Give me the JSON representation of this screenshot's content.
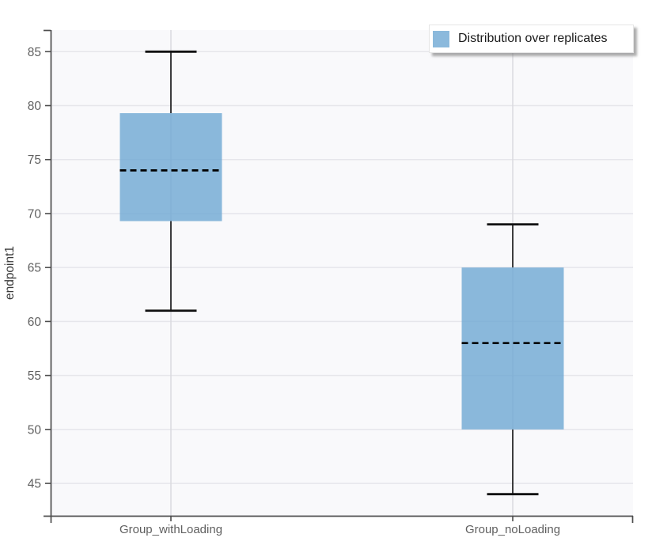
{
  "chart_data": {
    "type": "box",
    "title": "",
    "xlabel": "",
    "ylabel": "endpoint1",
    "ylim": [
      42,
      87
    ],
    "yticks": [
      45,
      50,
      55,
      60,
      65,
      70,
      75,
      80,
      85
    ],
    "grid": true,
    "categories": [
      "Group_withLoading",
      "Group_noLoading"
    ],
    "series": [
      {
        "name": "Group_withLoading",
        "whisker_low": 61,
        "q1": 69.3,
        "median": 74,
        "q3": 79.3,
        "whisker_high": 85
      },
      {
        "name": "Group_noLoading",
        "whisker_low": 44,
        "q1": 50,
        "median": 58,
        "q3": 65,
        "whisker_high": 69
      }
    ],
    "legend": {
      "label": "Distribution over replicates",
      "position": "top-right"
    },
    "colors": {
      "box_fill": "rgba(106,165,210,0.78)",
      "median": "#000000",
      "whisker": "#111111",
      "plot_bg": "#f9f9fb",
      "h_grid": "#e6e6eb",
      "v_grid": "#d9d9de",
      "axis": "#4d4d4d",
      "tick_label": "#606060",
      "axis_label": "#3a3a3a",
      "legend_bg": "#ffffff",
      "legend_border": "#e6e6e6",
      "legend_text": "#1a1a1a"
    }
  }
}
